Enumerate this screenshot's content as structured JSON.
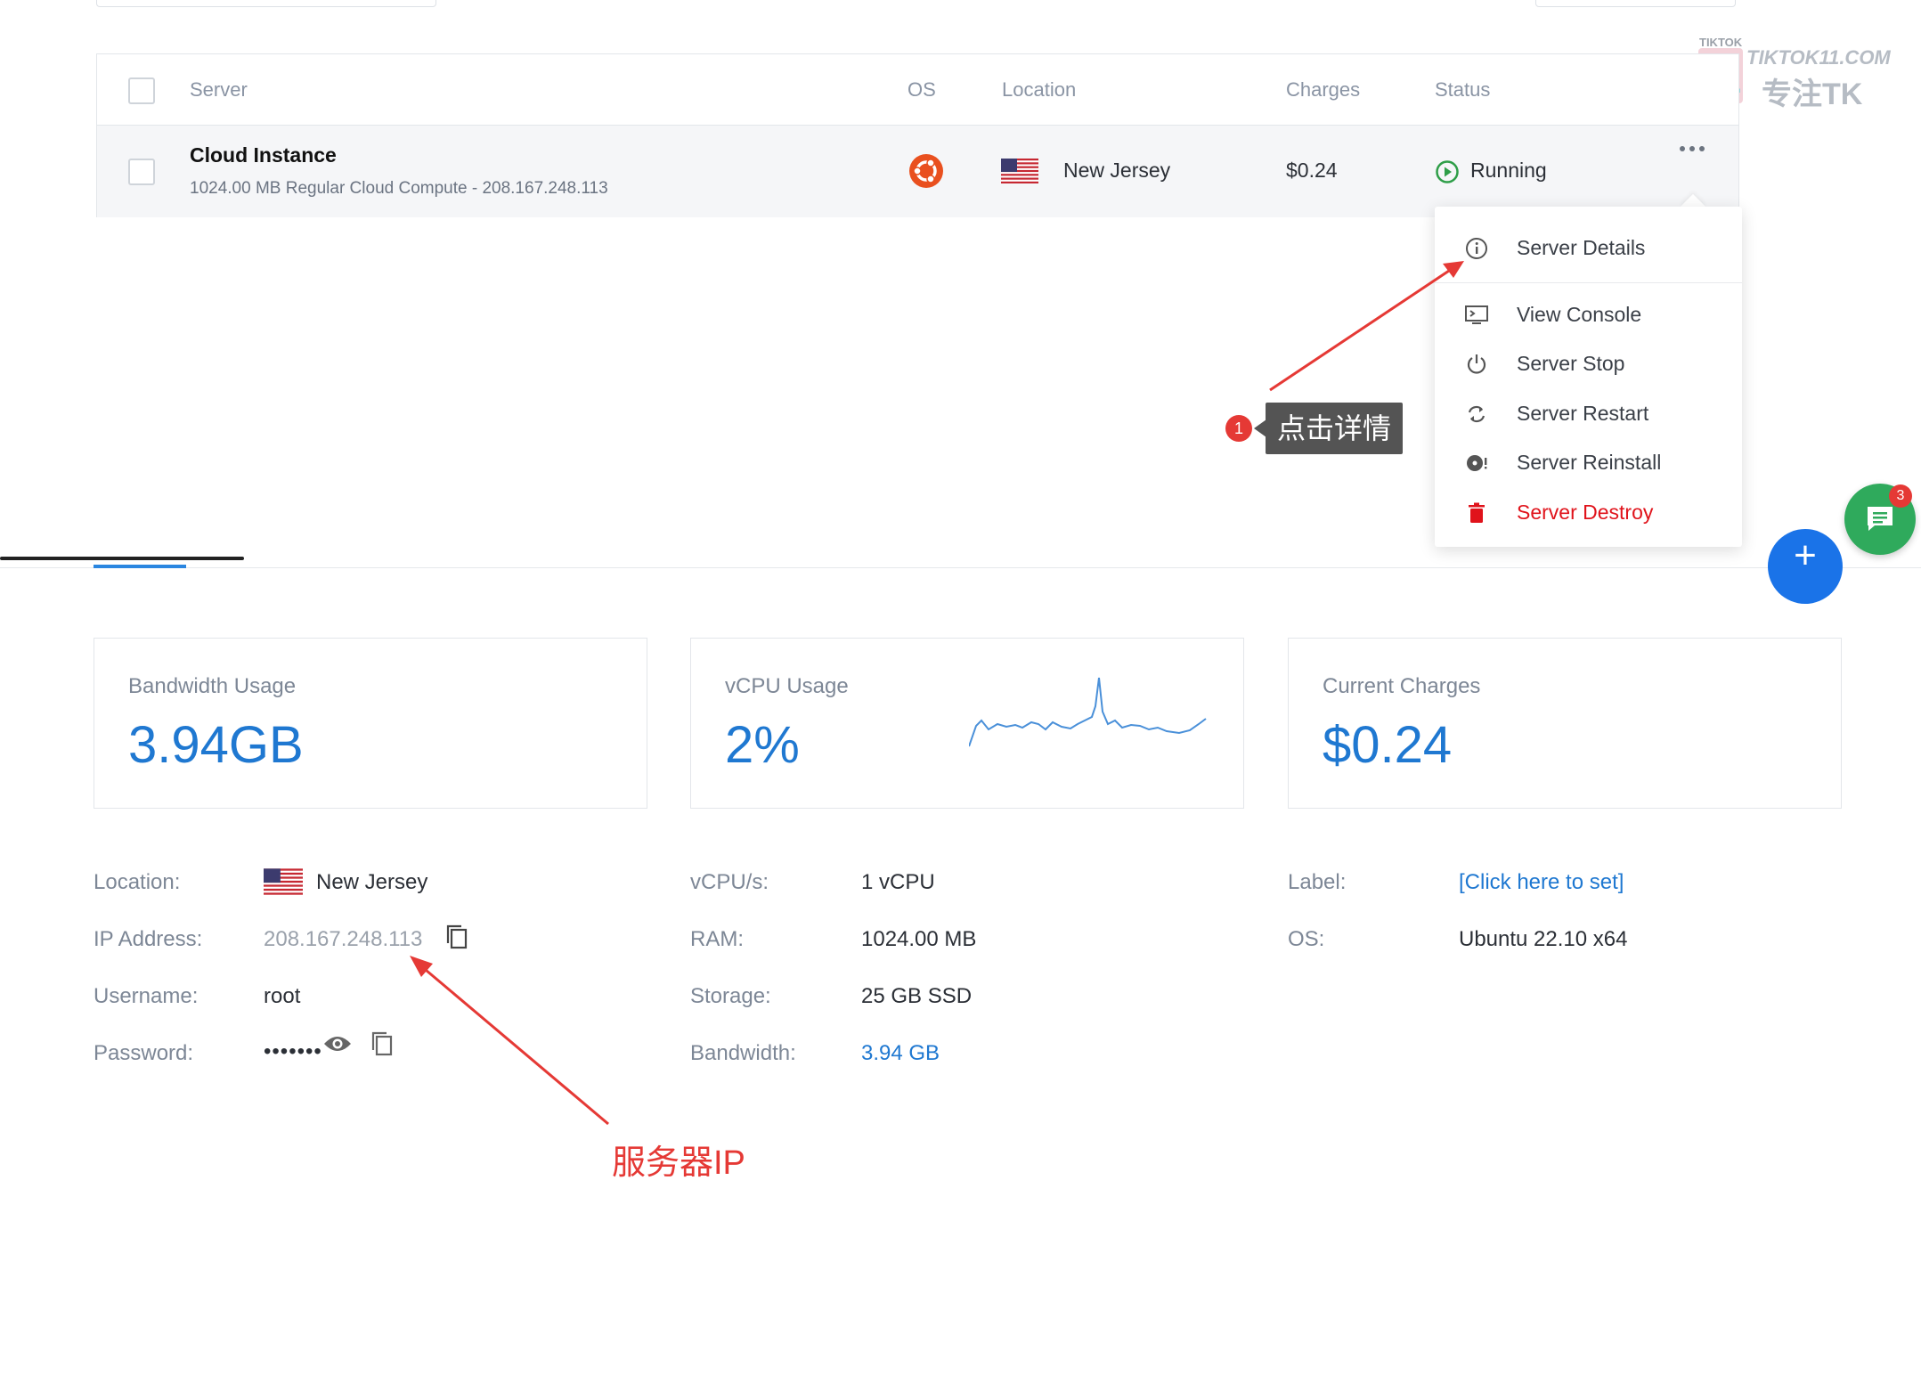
{
  "table": {
    "headers": {
      "server": "Server",
      "os": "OS",
      "location": "Location",
      "charges": "Charges",
      "status": "Status"
    },
    "row": {
      "name": "Cloud Instance",
      "subtitle": "1024.00 MB Regular Cloud Compute - 208.167.248.113",
      "os_icon": "ubuntu-icon",
      "location": "New Jersey",
      "charges": "$0.24",
      "status": "Running",
      "more_icon": "ellipsis-icon"
    }
  },
  "menu": {
    "items": [
      {
        "label": "Server Details",
        "icon": "info-icon"
      },
      {
        "label": "View Console",
        "icon": "console-icon"
      },
      {
        "label": "Server Stop",
        "icon": "power-icon"
      },
      {
        "label": "Server Restart",
        "icon": "restart-icon"
      },
      {
        "label": "Server Reinstall",
        "icon": "reinstall-icon"
      },
      {
        "label": "Server Destroy",
        "icon": "trash-icon"
      }
    ]
  },
  "annotations": {
    "step_number": "1",
    "step_label": "点击详情",
    "ip_label": "服务器IP"
  },
  "watermark": {
    "top": "TIKTOK",
    "brand": "TIKTOK11.COM",
    "cn": "专注TK"
  },
  "fab": {
    "chat_badge": "3",
    "plus": "+"
  },
  "stats": {
    "bandwidth_label": "Bandwidth Usage",
    "bandwidth_value": "3.94GB",
    "vcpu_label": "vCPU Usage",
    "vcpu_value": "2%",
    "charges_label": "Current Charges",
    "charges_value": "$0.24"
  },
  "details": {
    "location_label": "Location:",
    "location_value": "New Jersey",
    "ip_label": "IP Address:",
    "ip_value": "208.167.248.113",
    "username_label": "Username:",
    "username_value": "root",
    "password_label": "Password:",
    "password_value": "•••••••",
    "vcpus_label": "vCPU/s:",
    "vcpus_value": "1 vCPU",
    "ram_label": "RAM:",
    "ram_value": "1024.00 MB",
    "storage_label": "Storage:",
    "storage_value": "25 GB SSD",
    "bandwidth_label": "Bandwidth:",
    "bandwidth_value": "3.94 GB",
    "label_label": "Label:",
    "label_value": "[Click here to set]",
    "os_label": "OS:",
    "os_value": "Ubuntu 22.10 x64"
  },
  "colors": {
    "accent": "#1f78d1",
    "running": "#2e9e48",
    "danger": "#e0131b",
    "annotation": "#e53935"
  }
}
